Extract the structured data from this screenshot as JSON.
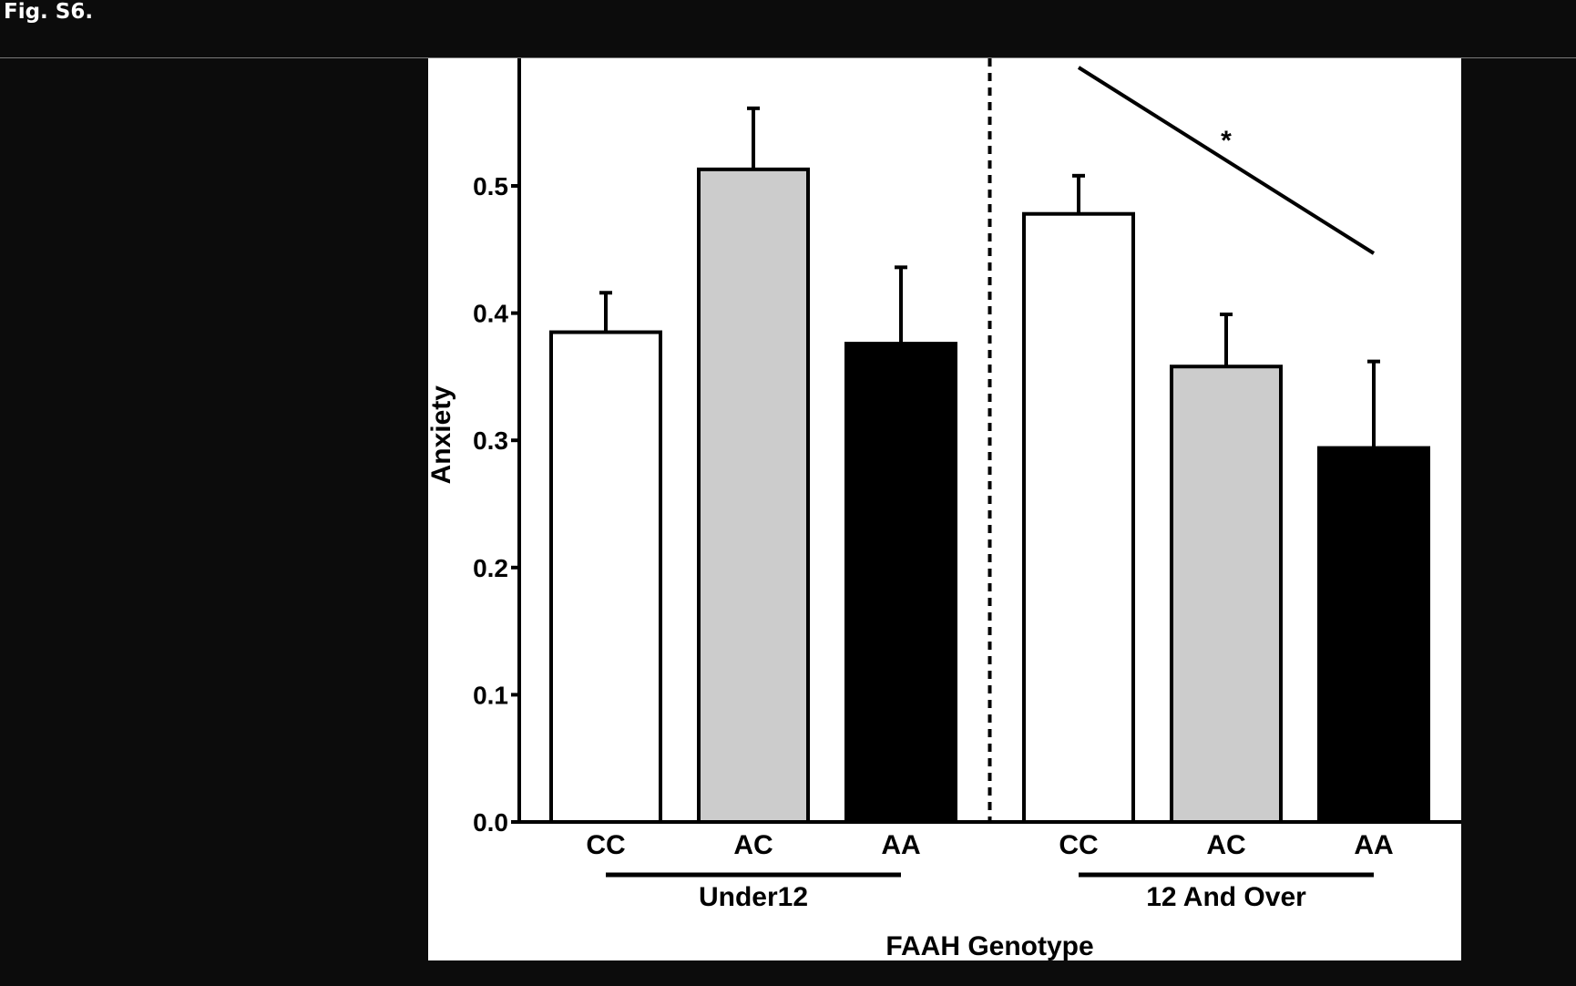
{
  "page": {
    "fig_label": "Fig. S6."
  },
  "chart_data": {
    "type": "bar",
    "title": "",
    "xlabel": "FAAH Genotype",
    "ylabel": "Anxiety",
    "ylim": [
      0,
      0.6
    ],
    "yticks": [
      "0.0",
      "0.1",
      "0.2",
      "0.3",
      "0.4",
      "0.5"
    ],
    "grid": false,
    "groups": [
      {
        "label": "Under12",
        "bars": [
          {
            "category": "CC",
            "value": 0.385,
            "error": 0.031,
            "color": "#ffffff"
          },
          {
            "category": "AC",
            "value": 0.513,
            "error": 0.048,
            "color": "#cccccc"
          },
          {
            "category": "AA",
            "value": 0.376,
            "error": 0.06,
            "color": "#000000"
          }
        ]
      },
      {
        "label": "12 And Over",
        "bars": [
          {
            "category": "CC",
            "value": 0.478,
            "error": 0.03,
            "color": "#ffffff"
          },
          {
            "category": "AC",
            "value": 0.358,
            "error": 0.041,
            "color": "#cccccc"
          },
          {
            "category": "AA",
            "value": 0.294,
            "error": 0.068,
            "color": "#000000"
          }
        ]
      }
    ],
    "annotation": {
      "text": "*",
      "group": "12 And Over"
    }
  }
}
